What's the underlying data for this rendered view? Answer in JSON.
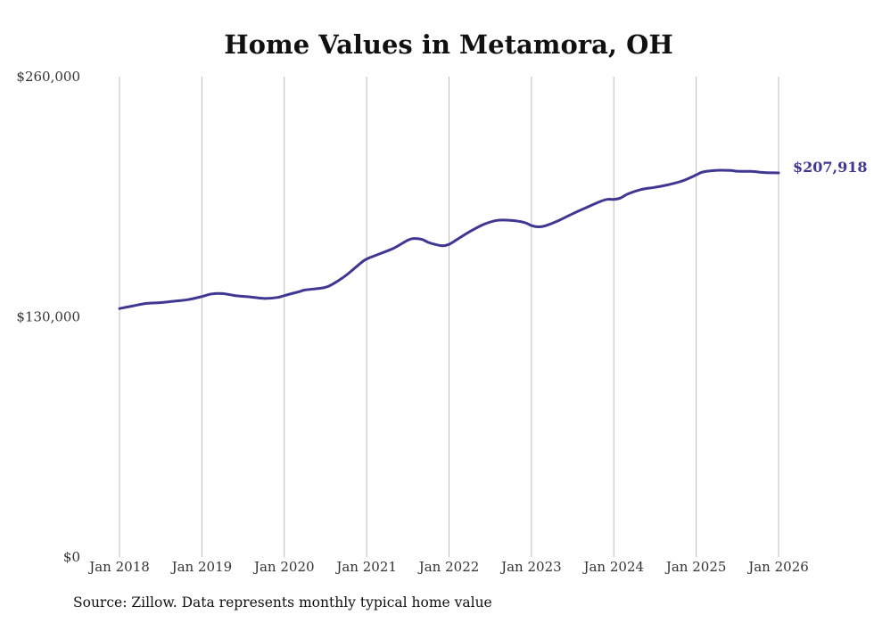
{
  "chart_data": {
    "type": "line",
    "title": "Home Values in Metamora, OH",
    "xlabel": "",
    "ylabel": "",
    "ylim": [
      0,
      260000
    ],
    "xlim": [
      2018.0,
      2026.0
    ],
    "y_ticks": [
      {
        "value": 0,
        "label": "$0"
      },
      {
        "value": 130000,
        "label": "$130,000"
      },
      {
        "value": 260000,
        "label": "$260,000"
      }
    ],
    "x_ticks": [
      {
        "value": 2018,
        "label": "Jan 2018"
      },
      {
        "value": 2019,
        "label": "Jan 2019"
      },
      {
        "value": 2020,
        "label": "Jan 2020"
      },
      {
        "value": 2021,
        "label": "Jan 2021"
      },
      {
        "value": 2022,
        "label": "Jan 2022"
      },
      {
        "value": 2023,
        "label": "Jan 2023"
      },
      {
        "value": 2024,
        "label": "Jan 2024"
      },
      {
        "value": 2025,
        "label": "Jan 2025"
      },
      {
        "value": 2026,
        "label": "Jan 2026"
      }
    ],
    "grid": "vertical",
    "series": [
      {
        "name": "Typical home value",
        "color": "#3f3791",
        "end_label": "$207,918",
        "points": [
          [
            2018.0,
            134500
          ],
          [
            2018.17,
            136000
          ],
          [
            2018.33,
            137300
          ],
          [
            2018.5,
            137700
          ],
          [
            2018.67,
            138500
          ],
          [
            2018.83,
            139300
          ],
          [
            2019.0,
            141000
          ],
          [
            2019.12,
            142400
          ],
          [
            2019.25,
            142600
          ],
          [
            2019.42,
            141400
          ],
          [
            2019.58,
            140800
          ],
          [
            2019.75,
            140000
          ],
          [
            2019.92,
            140500
          ],
          [
            2020.0,
            141500
          ],
          [
            2020.17,
            143500
          ],
          [
            2020.25,
            144500
          ],
          [
            2020.42,
            145400
          ],
          [
            2020.5,
            146000
          ],
          [
            2020.58,
            147500
          ],
          [
            2020.75,
            152500
          ],
          [
            2020.92,
            158800
          ],
          [
            2021.0,
            161300
          ],
          [
            2021.17,
            164300
          ],
          [
            2021.33,
            167200
          ],
          [
            2021.5,
            171500
          ],
          [
            2021.58,
            172400
          ],
          [
            2021.67,
            171900
          ],
          [
            2021.75,
            170300
          ],
          [
            2021.83,
            169200
          ],
          [
            2021.92,
            168500
          ],
          [
            2022.0,
            169200
          ],
          [
            2022.08,
            171400
          ],
          [
            2022.25,
            176100
          ],
          [
            2022.42,
            180000
          ],
          [
            2022.58,
            182200
          ],
          [
            2022.75,
            182200
          ],
          [
            2022.92,
            181000
          ],
          [
            2023.0,
            179400
          ],
          [
            2023.08,
            178700
          ],
          [
            2023.17,
            179300
          ],
          [
            2023.33,
            182100
          ],
          [
            2023.5,
            185800
          ],
          [
            2023.67,
            189200
          ],
          [
            2023.83,
            192300
          ],
          [
            2023.92,
            193600
          ],
          [
            2024.0,
            193600
          ],
          [
            2024.08,
            194300
          ],
          [
            2024.17,
            196500
          ],
          [
            2024.33,
            198900
          ],
          [
            2024.5,
            200100
          ],
          [
            2024.67,
            201600
          ],
          [
            2024.83,
            203500
          ],
          [
            2025.0,
            206800
          ],
          [
            2025.08,
            208400
          ],
          [
            2025.25,
            209300
          ],
          [
            2025.42,
            209200
          ],
          [
            2025.5,
            208800
          ],
          [
            2025.67,
            208700
          ],
          [
            2025.83,
            208100
          ],
          [
            2026.0,
            207918
          ]
        ]
      }
    ],
    "source": "Source: Zillow. Data represents monthly typical home value"
  }
}
